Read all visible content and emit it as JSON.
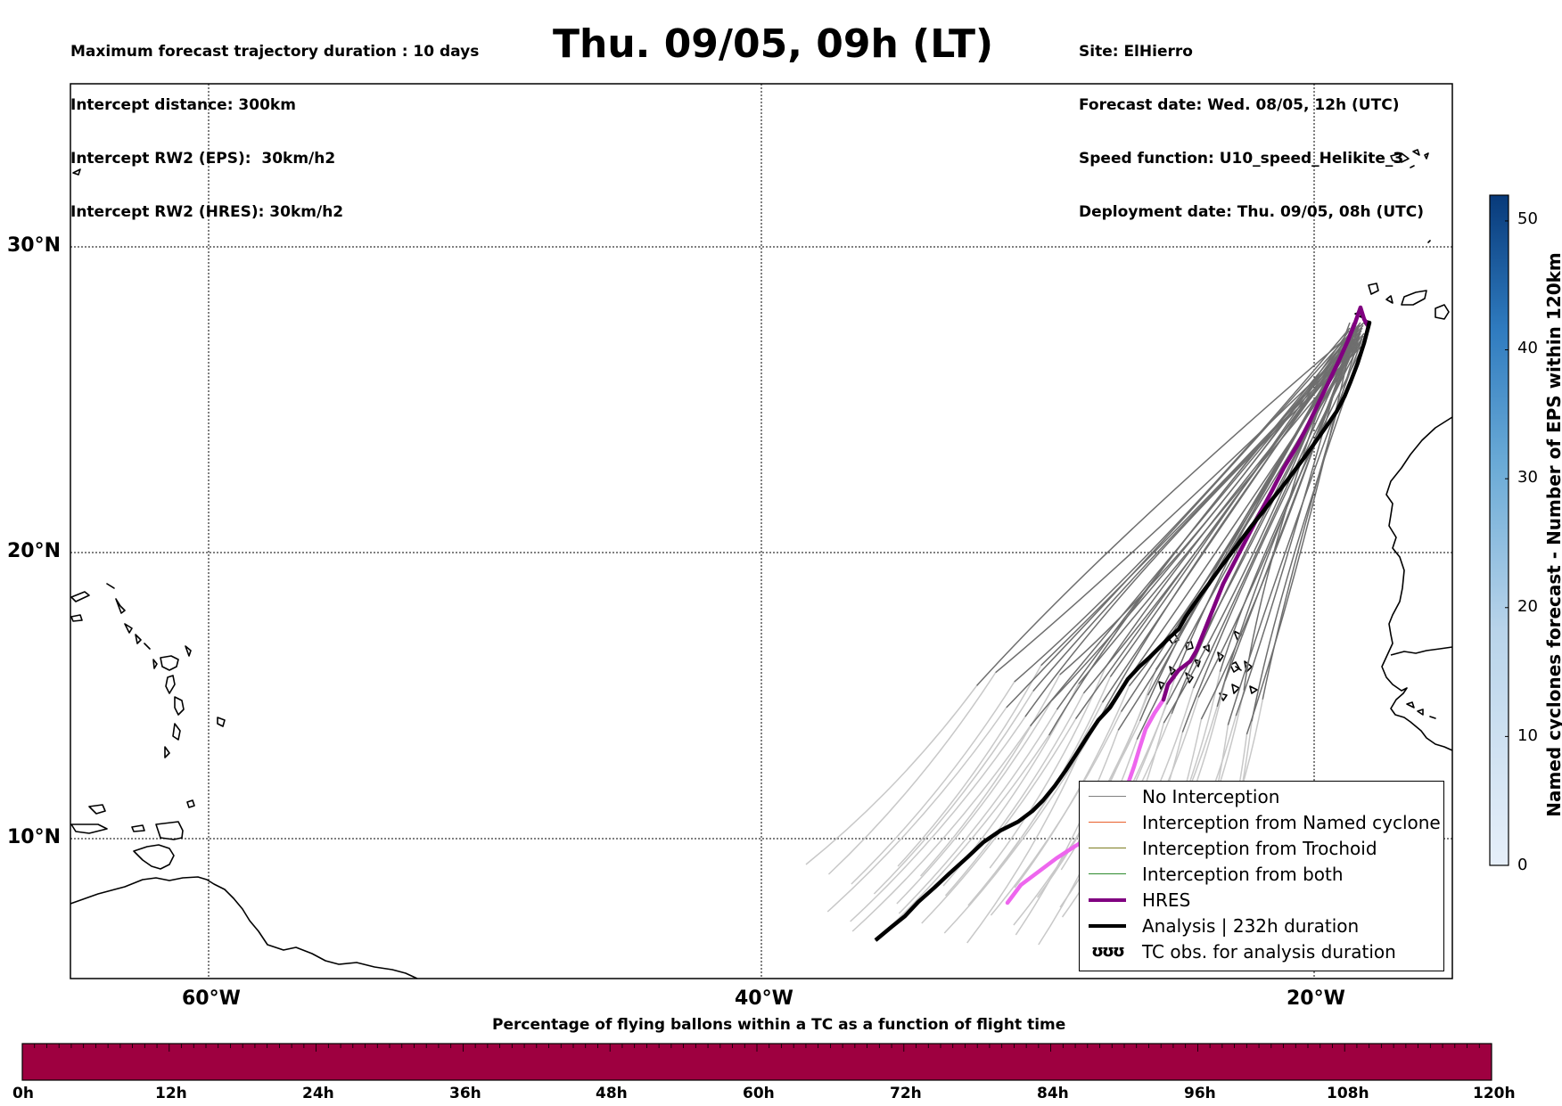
{
  "header": {
    "left_lines": [
      "Maximum forecast trajectory duration : 10 days",
      "Intercept distance: 300km",
      "Intercept RW2 (EPS):  30km/h2",
      "Intercept RW2 (HRES): 30km/h2"
    ],
    "title": "Thu. 09/05, 09h (LT)",
    "right_lines": [
      "Site: ElHierro",
      "Forecast date: Wed. 08/05, 12h (UTC)",
      "Speed function: U10_speed_Helikite_3",
      "Deployment date: Thu. 09/05, 08h (UTC)"
    ]
  },
  "map": {
    "lat_labels": [
      "30°N",
      "20°N",
      "10°N"
    ],
    "lon_labels": [
      "60°W",
      "40°W",
      "20°W"
    ],
    "colors": {
      "eps": "#6e6e6e",
      "eps_light": "#c8c8c8",
      "hres": "#800080",
      "hres_light": "#ee66ee",
      "analysis": "#000000"
    }
  },
  "legend": {
    "items": [
      {
        "label": "No Interception",
        "style": "thin",
        "color": "#808080"
      },
      {
        "label": "Interception from Named cyclone",
        "style": "thin",
        "color": "#e8602c"
      },
      {
        "label": "Interception from Trochoid",
        "style": "thin",
        "color": "#7d7d22"
      },
      {
        "label": "Interception from both",
        "style": "thin",
        "color": "#2e8b2e"
      },
      {
        "label": "HRES",
        "style": "thick",
        "color": "#800080"
      },
      {
        "label": "Analysis | 232h duration",
        "style": "thick",
        "color": "#000000"
      },
      {
        "label": "TC obs. for analysis duration",
        "style": "symbol",
        "color": "#000000",
        "symbol": "ʊʊʊ"
      }
    ]
  },
  "colorbar_right": {
    "label": "Named cyclones forecast - Number of EPS within 120km",
    "ticks": [
      "0",
      "10",
      "20",
      "30",
      "40",
      "50"
    ],
    "range": [
      0,
      52
    ],
    "colors": {
      "low": "#e6eff9",
      "high": "#083a7a"
    }
  },
  "colorbar_bottom": {
    "label": "Percentage of flying ballons within a TC as a function of flight time",
    "ticks": [
      "0h",
      "12h",
      "24h",
      "36h",
      "48h",
      "60h",
      "72h",
      "84h",
      "96h",
      "108h",
      "120h"
    ],
    "color": "#9e0040"
  }
}
